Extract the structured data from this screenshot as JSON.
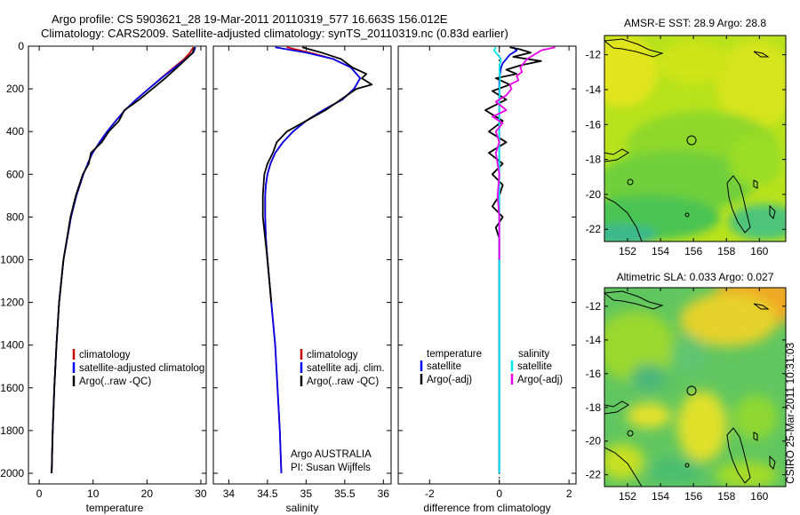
{
  "header": {
    "title_line1": "Argo profile: CS 5903621_28 19-Mar-2011 20110319_577 16.663S 156.012E",
    "title_line2": "Climatology: CARS2009. Satellite-adjusted climatology: synTS_20110319.nc (0.83d earlier)"
  },
  "credit": "CSIRO 25-Mar-2011 10:31:03",
  "profiles_yaxis": {
    "ticks": [
      "0",
      "200",
      "400",
      "600",
      "800",
      "1000",
      "1200",
      "1400",
      "1600",
      "1800",
      "2000"
    ]
  },
  "colors": {
    "climatology": "#cc0000",
    "satellite": "#0000ee",
    "argo": "#000000",
    "salinity_satellite": "#00e5ee",
    "salinity_argo": "#ee00ee"
  },
  "chart_data": [
    {
      "type": "line",
      "id": "temperature-panel",
      "xlabel": "temperature",
      "ylabel": "depth",
      "xlim": [
        -2,
        31
      ],
      "ylim": [
        2050,
        0
      ],
      "x_ticks": [
        "0",
        "10",
        "20",
        "30"
      ],
      "legend": [
        "climatology",
        "satellite-adjusted climatolog",
        "Argo(..raw -QC)"
      ],
      "series": [
        {
          "name": "climatology",
          "depth": [
            5,
            30,
            60,
            100,
            150,
            200,
            250,
            300,
            350,
            400,
            450,
            500,
            550,
            600,
            700,
            800,
            1000,
            1200,
            1400,
            1600,
            1800,
            2000
          ],
          "values": [
            28.6,
            28.0,
            26.9,
            25.0,
            22.6,
            20.3,
            18.0,
            15.9,
            14.2,
            12.6,
            11.2,
            9.9,
            9.0,
            8.2,
            6.9,
            5.9,
            4.5,
            3.7,
            3.2,
            2.8,
            2.5,
            2.3
          ]
        },
        {
          "name": "satellite-adjusted climatology",
          "depth": [
            5,
            30,
            60,
            100,
            150,
            200,
            250,
            300,
            350,
            400,
            450,
            500,
            550,
            600,
            700,
            800,
            1000,
            1200,
            1400,
            1600,
            1800,
            2000
          ],
          "values": [
            29.0,
            28.6,
            27.2,
            25.2,
            22.7,
            20.3,
            18.0,
            15.9,
            14.2,
            12.6,
            11.2,
            9.9,
            9.0,
            8.2,
            6.9,
            5.9,
            4.5,
            3.7,
            3.2,
            2.8,
            2.5,
            2.3
          ]
        },
        {
          "name": "Argo(..raw -QC)",
          "depth": [
            5,
            30,
            60,
            100,
            150,
            200,
            250,
            300,
            350,
            400,
            450,
            500,
            550,
            600,
            700,
            800,
            1000,
            1200,
            1400,
            1600,
            1800,
            2000
          ],
          "values": [
            28.8,
            28.5,
            27.3,
            25.6,
            23.4,
            21.0,
            18.6,
            15.8,
            14.8,
            12.9,
            11.6,
            9.6,
            9.2,
            8.1,
            6.8,
            5.8,
            4.5,
            3.7,
            3.2,
            2.8,
            2.5,
            2.3
          ]
        }
      ]
    },
    {
      "type": "line",
      "id": "salinity-panel",
      "xlabel": "salinity",
      "ylabel": "depth",
      "xlim": [
        33.8,
        36.1
      ],
      "ylim": [
        2050,
        0
      ],
      "x_ticks": [
        "34",
        "34.5",
        "35",
        "35.5",
        "36"
      ],
      "legend": [
        "climatology",
        "satellite adj. clim.",
        "Argo(..raw -QC)"
      ],
      "annotation": [
        "Argo AUSTRALIA",
        "PI: Susan Wijffels"
      ],
      "series": [
        {
          "name": "climatology",
          "depth": [
            5,
            30,
            60,
            100,
            150,
            200,
            250,
            300,
            350,
            400,
            450,
            500,
            550,
            600,
            650,
            700,
            800,
            900,
            1000,
            1200,
            1400,
            1600,
            1800,
            2000
          ],
          "values": [
            34.75,
            35.05,
            35.35,
            35.58,
            35.7,
            35.62,
            35.47,
            35.22,
            35.0,
            34.83,
            34.7,
            34.6,
            34.54,
            34.5,
            34.48,
            34.47,
            34.47,
            34.48,
            34.5,
            34.55,
            34.6,
            34.63,
            34.66,
            34.68
          ]
        },
        {
          "name": "satellite adj. clim.",
          "depth": [
            5,
            30,
            60,
            100,
            150,
            200,
            250,
            300,
            350,
            400,
            450,
            500,
            550,
            600,
            650,
            700,
            800,
            900,
            1000,
            1200,
            1400,
            1600,
            1800,
            2000
          ],
          "values": [
            34.6,
            35.0,
            35.35,
            35.58,
            35.7,
            35.62,
            35.47,
            35.22,
            35.0,
            34.83,
            34.7,
            34.6,
            34.54,
            34.5,
            34.48,
            34.47,
            34.47,
            34.48,
            34.5,
            34.55,
            34.6,
            34.63,
            34.66,
            34.68
          ]
        },
        {
          "name": "Argo(..raw -QC)",
          "depth": [
            5,
            30,
            60,
            100,
            130,
            150,
            180,
            200,
            250,
            300,
            350,
            400,
            450,
            500,
            550,
            600,
            650,
            700,
            800,
            900,
            1000,
            1200
          ],
          "values": [
            34.95,
            35.2,
            35.45,
            35.6,
            35.78,
            35.72,
            35.85,
            35.65,
            35.45,
            35.25,
            35.0,
            34.75,
            34.62,
            34.57,
            34.5,
            34.46,
            34.45,
            34.44,
            34.44,
            34.47,
            34.5,
            34.55
          ]
        }
      ]
    },
    {
      "type": "line",
      "id": "difference-panel",
      "xlabel": "difference from climatology",
      "ylabel": "depth",
      "xlim": [
        -2.9,
        2.2
      ],
      "ylim": [
        2050,
        0
      ],
      "x_ticks": [
        "-2",
        "0",
        "2"
      ],
      "legend_headers": [
        "temperature",
        "salinity"
      ],
      "legend": [
        "satellite",
        "Argo(-adj)",
        "satellite",
        "Argo(-adj)"
      ],
      "series": [
        {
          "name": "temperature satellite",
          "depth": [
            5,
            20,
            40,
            60,
            80,
            100,
            150,
            200,
            400,
            1000,
            2000
          ],
          "values": [
            0.4,
            0.5,
            0.3,
            0.2,
            0.1,
            0.05,
            0.0,
            0.0,
            0.0,
            0.0,
            0.0
          ]
        },
        {
          "name": "temperature Argo(-adj)",
          "depth": [
            5,
            15,
            30,
            50,
            70,
            90,
            110,
            130,
            150,
            180,
            210,
            250,
            300,
            350,
            400,
            450,
            500,
            550,
            600,
            650,
            700,
            750,
            800,
            850,
            900,
            1000,
            1100,
            1200,
            1400,
            1600,
            1800,
            2000
          ],
          "values": [
            0.3,
            0.6,
            0.9,
            0.4,
            1.2,
            0.6,
            0.2,
            0.5,
            -0.1,
            0.3,
            -0.2,
            0.2,
            -0.4,
            0.1,
            -0.3,
            0.2,
            -0.3,
            0.1,
            -0.2,
            0.1,
            0.0,
            -0.2,
            0.1,
            -0.1,
            0.0,
            0.0,
            0.0,
            0.0,
            0.0,
            0.0,
            0.0,
            0.0
          ]
        },
        {
          "name": "salinity satellite",
          "depth": [
            5,
            20,
            40,
            60,
            80,
            100,
            150,
            200,
            300,
            400,
            600,
            800,
            1000,
            1500,
            2000
          ],
          "values": [
            -0.1,
            -0.15,
            -0.05,
            0.05,
            0.02,
            0.0,
            0.02,
            0.01,
            0.0,
            0.0,
            0.0,
            0.0,
            0.0,
            0.0,
            0.0
          ]
        },
        {
          "name": "salinity Argo(-adj)",
          "depth": [
            5,
            20,
            40,
            60,
            80,
            100,
            120,
            140,
            160,
            180,
            200,
            230,
            260,
            300,
            330,
            360,
            400,
            450,
            500,
            600,
            700,
            800,
            900,
            1000
          ],
          "values": [
            1.6,
            1.2,
            1.0,
            0.8,
            0.7,
            0.6,
            0.65,
            0.5,
            0.55,
            0.3,
            0.35,
            0.2,
            -0.1,
            0.2,
            -0.2,
            0.1,
            -0.1,
            0.0,
            -0.1,
            0.0,
            -0.05,
            0.0,
            0.0,
            0.0
          ]
        }
      ]
    },
    {
      "type": "heatmap",
      "id": "sst-map",
      "title": "AMSR-E SST: 28.9  Argo: 28.8",
      "x_ticks": [
        "152",
        "154",
        "156",
        "158",
        "160"
      ],
      "y_ticks": [
        "-12",
        "-14",
        "-16",
        "-18",
        "-20",
        "-22"
      ],
      "xlim": [
        150.6,
        161.6
      ],
      "ylim": [
        -22.7,
        -10.9
      ],
      "float_position": [
        156.012,
        -16.663
      ]
    },
    {
      "type": "heatmap",
      "id": "sla-map",
      "title": "Altimetric SLA: 0.033  Argo: 0.027",
      "x_ticks": [
        "152",
        "154",
        "156",
        "158",
        "160"
      ],
      "y_ticks": [
        "-12",
        "-14",
        "-16",
        "-18",
        "-20",
        "-22"
      ],
      "xlim": [
        150.6,
        161.6
      ],
      "ylim": [
        -22.7,
        -10.9
      ],
      "float_position": [
        156.012,
        -16.663
      ]
    }
  ]
}
